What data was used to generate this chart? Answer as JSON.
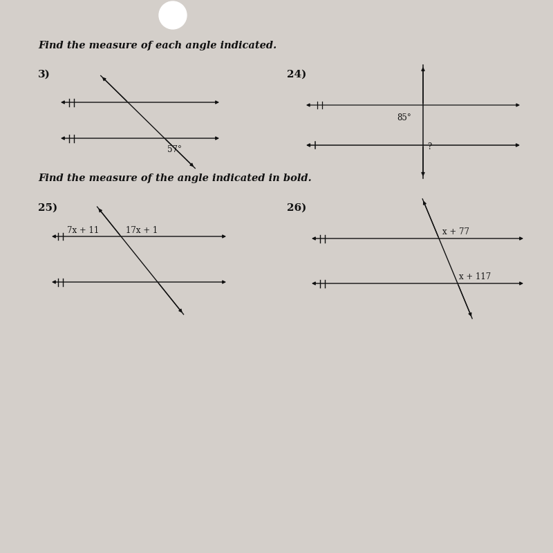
{
  "background_color": "#d4cfca",
  "paper_color": "#dedad5",
  "title1": "Find the measure of each angle indicated.",
  "title2": "Find the measure of the angle indicated in bold.",
  "prob3_label": "3)",
  "prob24_label": "24)",
  "prob25_label": "25)",
  "prob26_label": "26)",
  "angle3": "57°",
  "angle24": "85°",
  "angle24_q": "?",
  "label25_left": "7x + 11",
  "label25_right": "17x + 1",
  "label26_top": "x + 77",
  "label26_bot": "x + 117",
  "line_color": "#111111",
  "text_color": "#111111",
  "title_fontsize": 10.5,
  "label_fontsize": 8.5,
  "number_fontsize": 11
}
